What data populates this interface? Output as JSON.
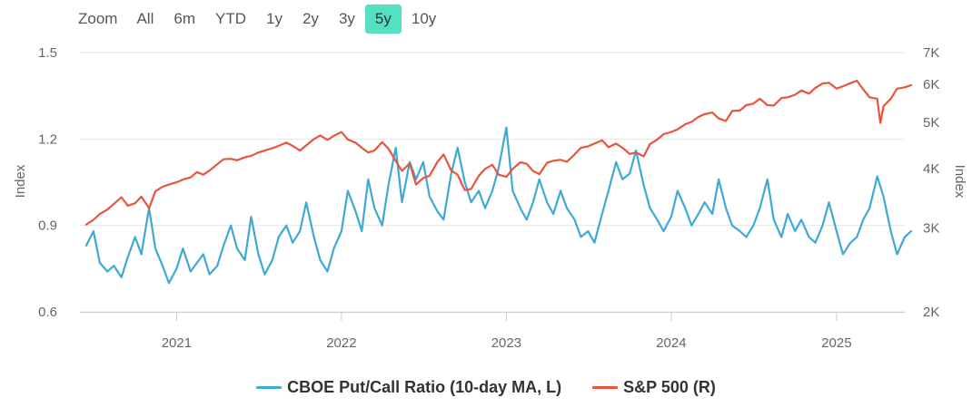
{
  "zoom": {
    "label": "Zoom",
    "buttons": [
      "All",
      "6m",
      "YTD",
      "1y",
      "2y",
      "3y",
      "5y",
      "10y"
    ],
    "active": "5y",
    "active_color": "#54e0c2"
  },
  "chart_data": {
    "type": "line",
    "x_range": [
      "2020-06",
      "2025-06"
    ],
    "x_ticks": [
      "2021",
      "2022",
      "2023",
      "2024",
      "2025"
    ],
    "left_axis": {
      "label": "Index",
      "ticks": [
        "0.6",
        "0.9",
        "1.2",
        "1.5"
      ],
      "ylim": [
        0.6,
        1.5
      ]
    },
    "right_axis": {
      "label": "Index",
      "scale": "log",
      "ticks": [
        "2K",
        "3K",
        "4K",
        "5K",
        "6K",
        "7K"
      ],
      "ylim": [
        2000,
        7000
      ]
    },
    "grid": true,
    "legend_position": "bottom",
    "series": [
      {
        "name": "CBOE Put/Call Ratio (10-day MA, L)",
        "color": "#3fa9d4",
        "axis": "left",
        "points": [
          [
            "2020-06-15",
            0.83
          ],
          [
            "2020-07-01",
            0.88
          ],
          [
            "2020-07-15",
            0.77
          ],
          [
            "2020-08-01",
            0.74
          ],
          [
            "2020-08-15",
            0.76
          ],
          [
            "2020-09-01",
            0.72
          ],
          [
            "2020-09-15",
            0.79
          ],
          [
            "2020-10-01",
            0.86
          ],
          [
            "2020-10-15",
            0.8
          ],
          [
            "2020-11-01",
            0.96
          ],
          [
            "2020-11-15",
            0.82
          ],
          [
            "2020-12-01",
            0.76
          ],
          [
            "2020-12-15",
            0.7
          ],
          [
            "2021-01-01",
            0.75
          ],
          [
            "2021-01-15",
            0.82
          ],
          [
            "2021-02-01",
            0.74
          ],
          [
            "2021-02-15",
            0.77
          ],
          [
            "2021-03-01",
            0.8
          ],
          [
            "2021-03-15",
            0.73
          ],
          [
            "2021-04-01",
            0.76
          ],
          [
            "2021-04-15",
            0.83
          ],
          [
            "2021-05-01",
            0.9
          ],
          [
            "2021-05-15",
            0.82
          ],
          [
            "2021-06-01",
            0.78
          ],
          [
            "2021-06-15",
            0.93
          ],
          [
            "2021-07-01",
            0.8
          ],
          [
            "2021-07-15",
            0.73
          ],
          [
            "2021-08-01",
            0.78
          ],
          [
            "2021-08-15",
            0.86
          ],
          [
            "2021-09-01",
            0.9
          ],
          [
            "2021-09-15",
            0.84
          ],
          [
            "2021-10-01",
            0.88
          ],
          [
            "2021-10-15",
            0.98
          ],
          [
            "2021-11-01",
            0.86
          ],
          [
            "2021-11-15",
            0.78
          ],
          [
            "2021-12-01",
            0.74
          ],
          [
            "2021-12-15",
            0.82
          ],
          [
            "2022-01-01",
            0.88
          ],
          [
            "2022-01-15",
            1.02
          ],
          [
            "2022-02-01",
            0.95
          ],
          [
            "2022-02-15",
            0.88
          ],
          [
            "2022-03-01",
            1.06
          ],
          [
            "2022-03-15",
            0.96
          ],
          [
            "2022-04-01",
            0.9
          ],
          [
            "2022-04-15",
            1.04
          ],
          [
            "2022-05-01",
            1.17
          ],
          [
            "2022-05-15",
            0.98
          ],
          [
            "2022-06-01",
            1.12
          ],
          [
            "2022-06-15",
            1.06
          ],
          [
            "2022-07-01",
            1.12
          ],
          [
            "2022-07-15",
            1.0
          ],
          [
            "2022-08-01",
            0.95
          ],
          [
            "2022-08-15",
            0.92
          ],
          [
            "2022-09-01",
            1.08
          ],
          [
            "2022-09-15",
            1.17
          ],
          [
            "2022-10-01",
            1.05
          ],
          [
            "2022-10-15",
            0.98
          ],
          [
            "2022-11-01",
            1.02
          ],
          [
            "2022-11-15",
            0.96
          ],
          [
            "2022-12-01",
            1.02
          ],
          [
            "2022-12-15",
            1.1
          ],
          [
            "2023-01-01",
            1.24
          ],
          [
            "2023-01-15",
            1.02
          ],
          [
            "2023-02-01",
            0.96
          ],
          [
            "2023-02-15",
            0.92
          ],
          [
            "2023-03-01",
            0.98
          ],
          [
            "2023-03-15",
            1.06
          ],
          [
            "2023-04-01",
            0.98
          ],
          [
            "2023-04-15",
            0.94
          ],
          [
            "2023-05-01",
            1.02
          ],
          [
            "2023-05-15",
            0.96
          ],
          [
            "2023-06-01",
            0.92
          ],
          [
            "2023-06-15",
            0.86
          ],
          [
            "2023-07-01",
            0.88
          ],
          [
            "2023-07-15",
            0.84
          ],
          [
            "2023-08-01",
            0.94
          ],
          [
            "2023-08-15",
            1.02
          ],
          [
            "2023-09-01",
            1.12
          ],
          [
            "2023-09-15",
            1.06
          ],
          [
            "2023-10-01",
            1.08
          ],
          [
            "2023-10-15",
            1.16
          ],
          [
            "2023-11-01",
            1.04
          ],
          [
            "2023-11-15",
            0.96
          ],
          [
            "2023-12-01",
            0.92
          ],
          [
            "2023-12-15",
            0.88
          ],
          [
            "2024-01-01",
            0.93
          ],
          [
            "2024-01-15",
            1.02
          ],
          [
            "2024-02-01",
            0.96
          ],
          [
            "2024-02-15",
            0.9
          ],
          [
            "2024-03-01",
            0.94
          ],
          [
            "2024-03-15",
            0.98
          ],
          [
            "2024-04-01",
            0.94
          ],
          [
            "2024-04-15",
            1.06
          ],
          [
            "2024-05-01",
            0.96
          ],
          [
            "2024-05-15",
            0.9
          ],
          [
            "2024-06-01",
            0.88
          ],
          [
            "2024-06-15",
            0.86
          ],
          [
            "2024-07-01",
            0.9
          ],
          [
            "2024-07-15",
            0.96
          ],
          [
            "2024-08-01",
            1.06
          ],
          [
            "2024-08-15",
            0.92
          ],
          [
            "2024-09-01",
            0.86
          ],
          [
            "2024-09-15",
            0.94
          ],
          [
            "2024-10-01",
            0.88
          ],
          [
            "2024-10-15",
            0.92
          ],
          [
            "2024-11-01",
            0.86
          ],
          [
            "2024-11-15",
            0.84
          ],
          [
            "2024-12-01",
            0.9
          ],
          [
            "2024-12-15",
            0.98
          ],
          [
            "2025-01-01",
            0.88
          ],
          [
            "2025-01-15",
            0.8
          ],
          [
            "2025-02-01",
            0.84
          ],
          [
            "2025-02-15",
            0.86
          ],
          [
            "2025-03-01",
            0.92
          ],
          [
            "2025-03-15",
            0.96
          ],
          [
            "2025-04-01",
            1.07
          ],
          [
            "2025-04-15",
            1.0
          ],
          [
            "2025-05-01",
            0.88
          ],
          [
            "2025-05-15",
            0.8
          ],
          [
            "2025-06-01",
            0.86
          ],
          [
            "2025-06-15",
            0.88
          ]
        ]
      },
      {
        "name": "S&P 500 (R)",
        "color": "#e8553f",
        "axis": "right",
        "points": [
          [
            "2020-06-15",
            3050
          ],
          [
            "2020-07-01",
            3120
          ],
          [
            "2020-07-15",
            3210
          ],
          [
            "2020-08-01",
            3280
          ],
          [
            "2020-08-15",
            3370
          ],
          [
            "2020-09-01",
            3480
          ],
          [
            "2020-09-15",
            3340
          ],
          [
            "2020-10-01",
            3380
          ],
          [
            "2020-10-15",
            3490
          ],
          [
            "2020-11-01",
            3300
          ],
          [
            "2020-11-15",
            3580
          ],
          [
            "2020-12-01",
            3660
          ],
          [
            "2020-12-15",
            3700
          ],
          [
            "2021-01-01",
            3740
          ],
          [
            "2021-01-15",
            3790
          ],
          [
            "2021-02-01",
            3830
          ],
          [
            "2021-02-15",
            3930
          ],
          [
            "2021-03-01",
            3880
          ],
          [
            "2021-03-15",
            3960
          ],
          [
            "2021-04-01",
            4080
          ],
          [
            "2021-04-15",
            4180
          ],
          [
            "2021-05-01",
            4190
          ],
          [
            "2021-05-15",
            4160
          ],
          [
            "2021-06-01",
            4220
          ],
          [
            "2021-06-15",
            4250
          ],
          [
            "2021-07-01",
            4320
          ],
          [
            "2021-07-15",
            4360
          ],
          [
            "2021-08-01",
            4410
          ],
          [
            "2021-08-15",
            4460
          ],
          [
            "2021-09-01",
            4530
          ],
          [
            "2021-09-15",
            4460
          ],
          [
            "2021-10-01",
            4360
          ],
          [
            "2021-10-15",
            4470
          ],
          [
            "2021-11-01",
            4610
          ],
          [
            "2021-11-15",
            4690
          ],
          [
            "2021-12-01",
            4590
          ],
          [
            "2021-12-15",
            4680
          ],
          [
            "2022-01-01",
            4770
          ],
          [
            "2022-01-15",
            4600
          ],
          [
            "2022-02-01",
            4530
          ],
          [
            "2022-02-15",
            4420
          ],
          [
            "2022-03-01",
            4320
          ],
          [
            "2022-03-15",
            4360
          ],
          [
            "2022-04-01",
            4540
          ],
          [
            "2022-04-15",
            4400
          ],
          [
            "2022-05-01",
            4150
          ],
          [
            "2022-05-15",
            3950
          ],
          [
            "2022-06-01",
            4100
          ],
          [
            "2022-06-15",
            3700
          ],
          [
            "2022-07-01",
            3820
          ],
          [
            "2022-07-15",
            3860
          ],
          [
            "2022-08-01",
            4120
          ],
          [
            "2022-08-15",
            4280
          ],
          [
            "2022-09-01",
            3960
          ],
          [
            "2022-09-15",
            3880
          ],
          [
            "2022-10-01",
            3600
          ],
          [
            "2022-10-15",
            3620
          ],
          [
            "2022-11-01",
            3860
          ],
          [
            "2022-11-15",
            3990
          ],
          [
            "2022-12-01",
            4070
          ],
          [
            "2022-12-15",
            3880
          ],
          [
            "2023-01-01",
            3840
          ],
          [
            "2023-01-15",
            3990
          ],
          [
            "2023-02-01",
            4120
          ],
          [
            "2023-02-15",
            4090
          ],
          [
            "2023-03-01",
            3950
          ],
          [
            "2023-03-15",
            3890
          ],
          [
            "2023-04-01",
            4110
          ],
          [
            "2023-04-15",
            4150
          ],
          [
            "2023-05-01",
            4170
          ],
          [
            "2023-05-15",
            4130
          ],
          [
            "2023-06-01",
            4280
          ],
          [
            "2023-06-15",
            4420
          ],
          [
            "2023-07-01",
            4450
          ],
          [
            "2023-07-15",
            4510
          ],
          [
            "2023-08-01",
            4580
          ],
          [
            "2023-08-15",
            4430
          ],
          [
            "2023-09-01",
            4510
          ],
          [
            "2023-09-15",
            4420
          ],
          [
            "2023-10-01",
            4290
          ],
          [
            "2023-10-15",
            4320
          ],
          [
            "2023-11-01",
            4240
          ],
          [
            "2023-11-15",
            4500
          ],
          [
            "2023-12-01",
            4600
          ],
          [
            "2023-12-15",
            4720
          ],
          [
            "2024-01-01",
            4770
          ],
          [
            "2024-01-15",
            4830
          ],
          [
            "2024-02-01",
            4950
          ],
          [
            "2024-02-15",
            5010
          ],
          [
            "2024-03-01",
            5130
          ],
          [
            "2024-03-15",
            5200
          ],
          [
            "2024-04-01",
            5240
          ],
          [
            "2024-04-15",
            5090
          ],
          [
            "2024-05-01",
            5030
          ],
          [
            "2024-05-15",
            5280
          ],
          [
            "2024-06-01",
            5290
          ],
          [
            "2024-06-15",
            5430
          ],
          [
            "2024-07-01",
            5470
          ],
          [
            "2024-07-15",
            5600
          ],
          [
            "2024-08-01",
            5430
          ],
          [
            "2024-08-15",
            5420
          ],
          [
            "2024-09-01",
            5620
          ],
          [
            "2024-09-15",
            5640
          ],
          [
            "2024-10-01",
            5710
          ],
          [
            "2024-10-15",
            5830
          ],
          [
            "2024-11-01",
            5740
          ],
          [
            "2024-11-15",
            5900
          ],
          [
            "2024-12-01",
            6030
          ],
          [
            "2024-12-15",
            6050
          ],
          [
            "2025-01-01",
            5880
          ],
          [
            "2025-01-15",
            5950
          ],
          [
            "2025-02-01",
            6040
          ],
          [
            "2025-02-15",
            6110
          ],
          [
            "2025-03-01",
            5860
          ],
          [
            "2025-03-15",
            5640
          ],
          [
            "2025-04-01",
            5600
          ],
          [
            "2025-04-08",
            4980
          ],
          [
            "2025-04-15",
            5400
          ],
          [
            "2025-05-01",
            5600
          ],
          [
            "2025-05-15",
            5880
          ],
          [
            "2025-06-01",
            5920
          ],
          [
            "2025-06-15",
            5980
          ]
        ]
      }
    ]
  }
}
